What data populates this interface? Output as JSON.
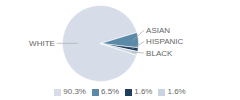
{
  "chart_data": {
    "type": "pie",
    "categories": [
      "WHITE",
      "ASIAN",
      "HISPANIC",
      "BLACK"
    ],
    "values": [
      90.3,
      6.5,
      1.6,
      1.6
    ],
    "value_labels": [
      "90.3%",
      "6.5%",
      "1.6%",
      "1.6%"
    ],
    "colors": [
      "#d6dde8",
      "#5b8aa8",
      "#1f3d5c",
      "#c8d4e0"
    ],
    "legend": "bottom"
  }
}
